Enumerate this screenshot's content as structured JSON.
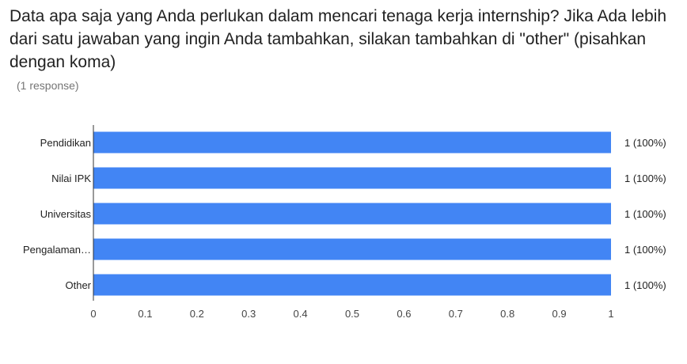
{
  "question": {
    "title": "Data apa saja yang Anda perlukan dalam mencari tenaga kerja internship? Jika Ada lebih dari satu jawaban yang ingin Anda tambahkan, silakan tambahkan di \"other\" (pisahkan dengan koma)",
    "response_count": "(1 response)"
  },
  "colors": {
    "bar": "#4285f4",
    "axis": "#333333",
    "tick_label": "#444444",
    "category_label": "#222222",
    "data_label": "#222222"
  },
  "chart_data": {
    "type": "bar",
    "orientation": "horizontal",
    "categories": [
      "Pendidikan",
      "Nilai IPK",
      "Universitas",
      "Pengalaman…",
      "Other"
    ],
    "values": [
      1,
      1,
      1,
      1,
      1
    ],
    "data_labels": [
      "1 (100%)",
      "1 (100%)",
      "1 (100%)",
      "1 (100%)",
      "1 (100%)"
    ],
    "xlim": [
      0,
      1
    ],
    "xticks": [
      0,
      0.1,
      0.2,
      0.3,
      0.4,
      0.5,
      0.6,
      0.7,
      0.8,
      0.9,
      1
    ],
    "xtick_labels": [
      "0",
      "0.1",
      "0.2",
      "0.3",
      "0.4",
      "0.5",
      "0.6",
      "0.7",
      "0.8",
      "0.9",
      "1"
    ],
    "grid": false,
    "legend": "none"
  }
}
